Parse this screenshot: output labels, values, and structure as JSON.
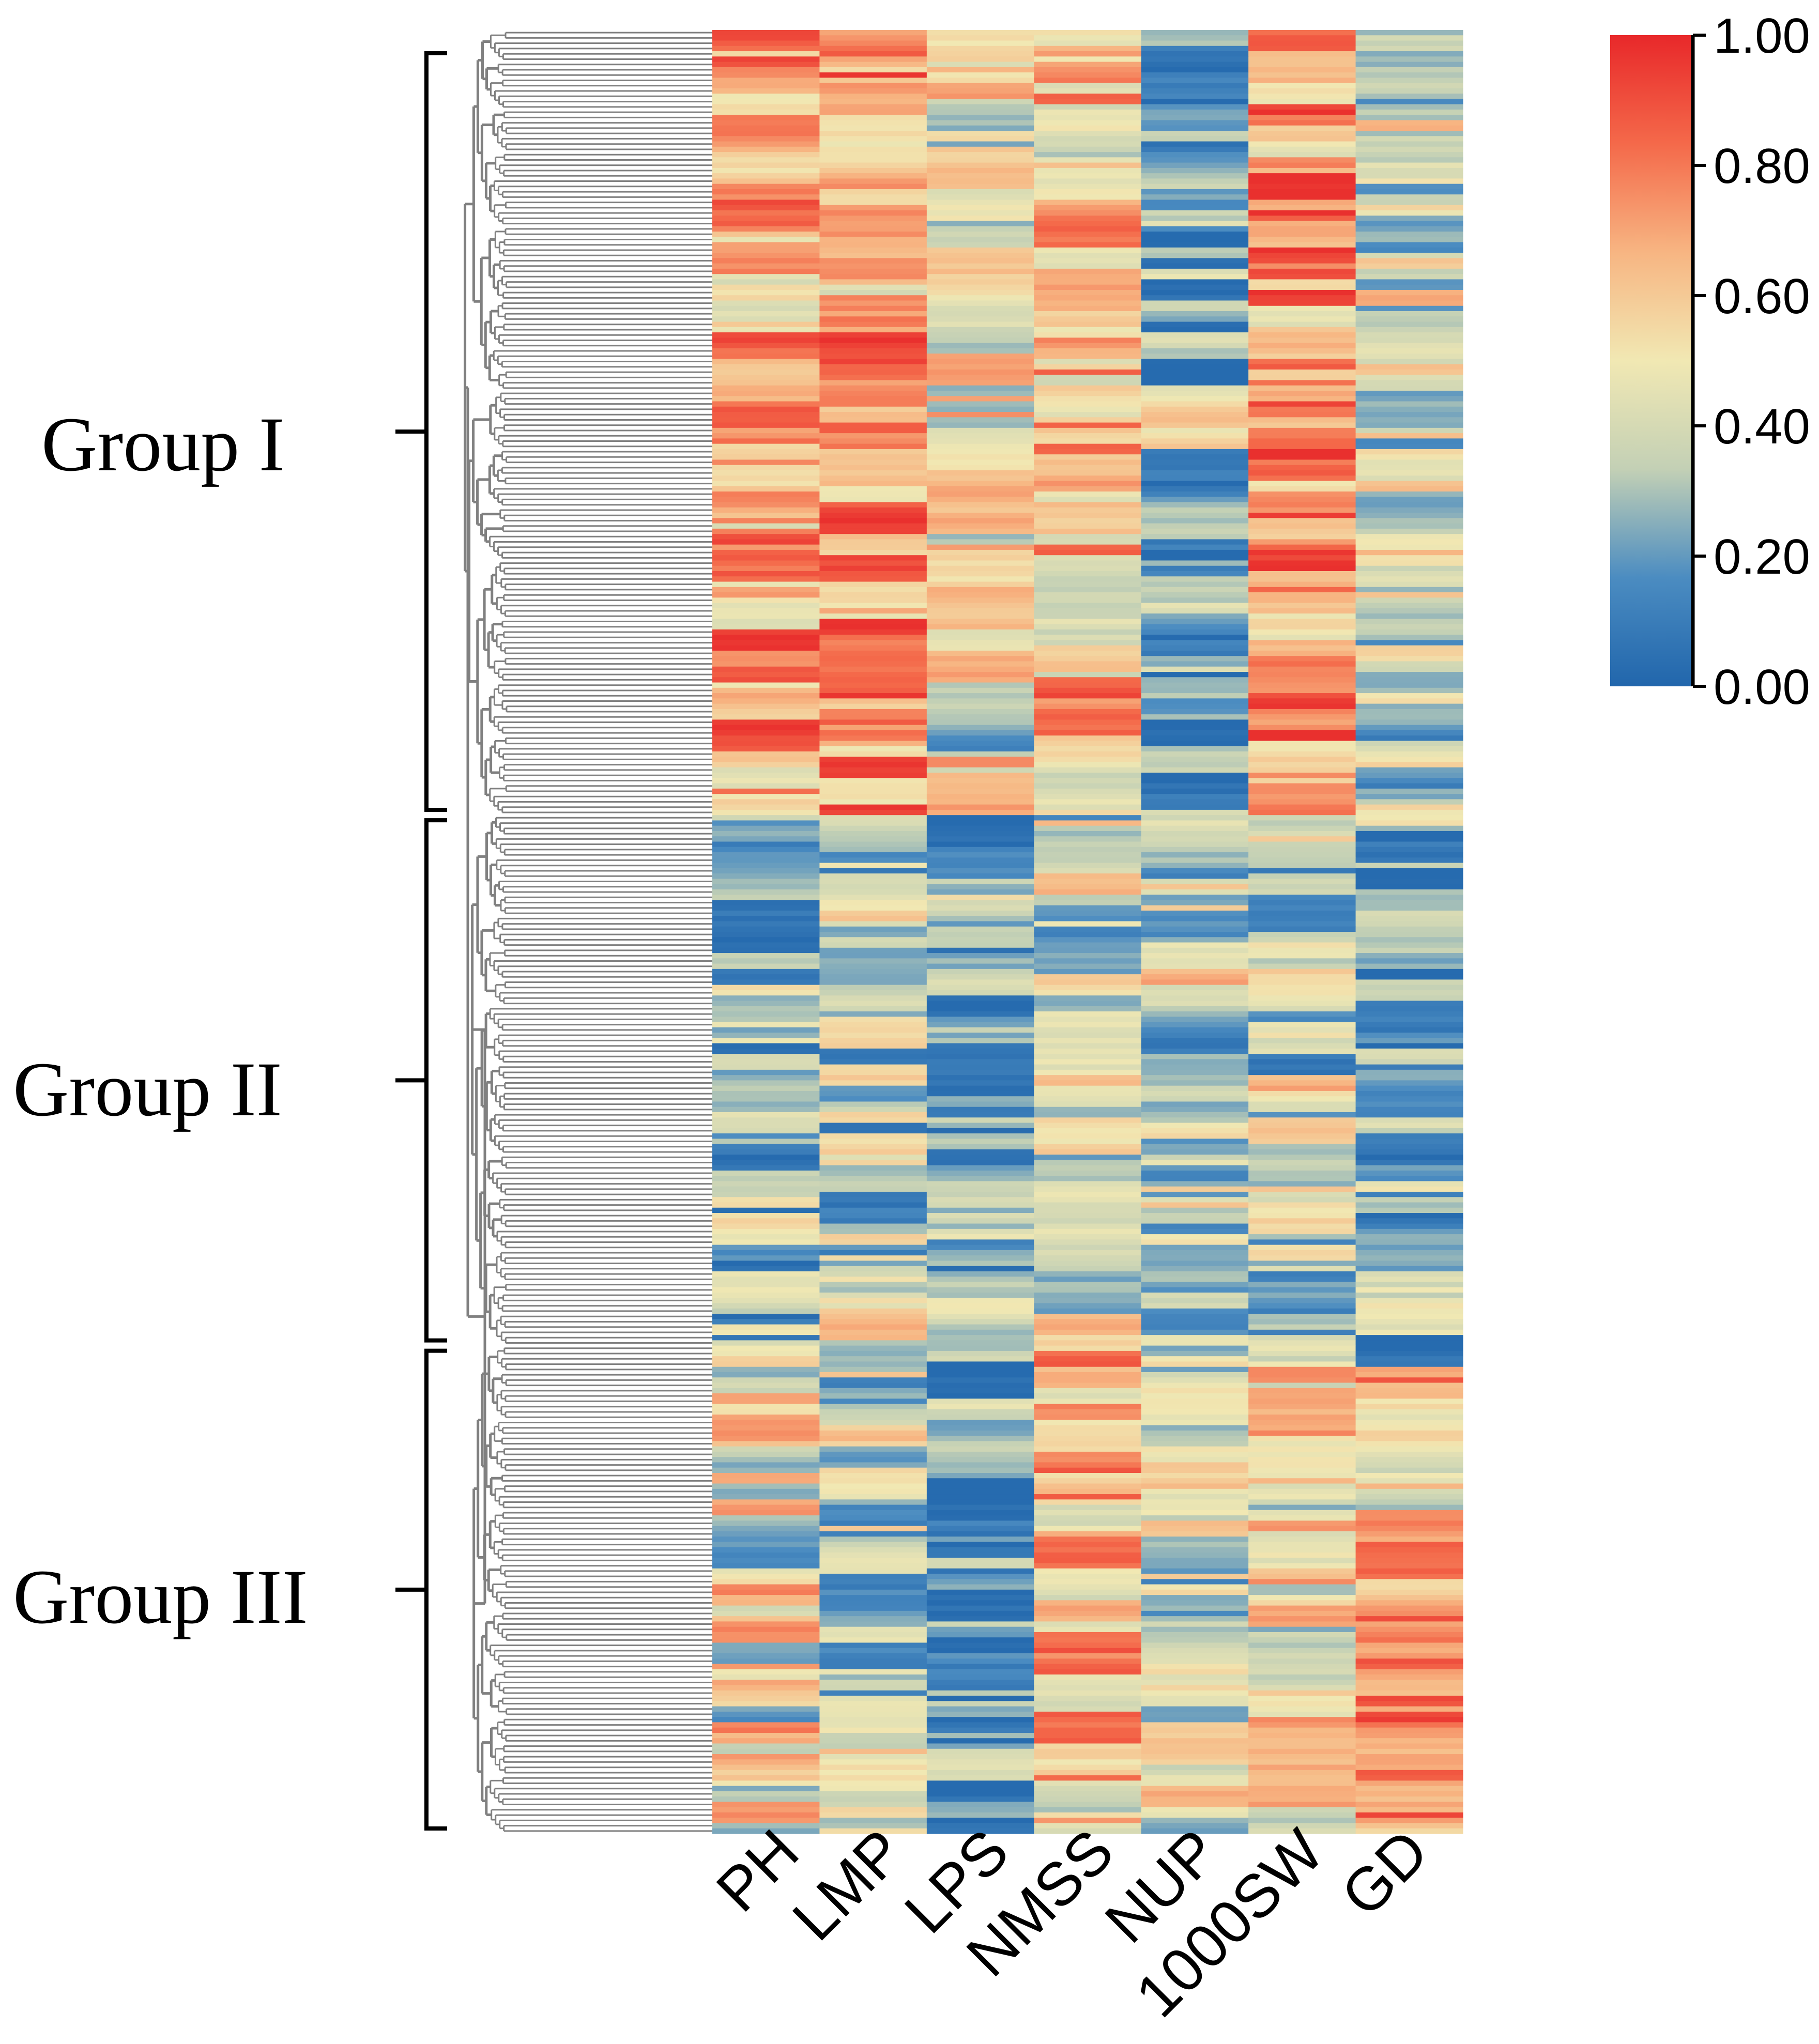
{
  "chart_data": {
    "type": "heatmap",
    "title": "",
    "columns": [
      "PH",
      "LMP",
      "LPS",
      "NMSS",
      "NUP",
      "1000SW",
      "GD"
    ],
    "row_count": 340,
    "groups": [
      {
        "name": "Group I",
        "row_range": [
          0,
          148
        ]
      },
      {
        "name": "Group II",
        "row_range": [
          148,
          248
        ]
      },
      {
        "name": "Group III",
        "row_range": [
          248,
          340
        ]
      }
    ],
    "group_mean_profile": [
      {
        "group": "Group I",
        "values": [
          0.68,
          0.7,
          0.5,
          0.6,
          0.22,
          0.75,
          0.4
        ]
      },
      {
        "group": "Group II",
        "values": [
          0.28,
          0.33,
          0.27,
          0.4,
          0.4,
          0.35,
          0.22
        ]
      },
      {
        "group": "Group III",
        "values": [
          0.5,
          0.38,
          0.18,
          0.65,
          0.38,
          0.5,
          0.65
        ]
      }
    ],
    "colorbar": {
      "ticks": [
        "1.00",
        "0.80",
        "0.60",
        "0.40",
        "0.20",
        "0.00"
      ],
      "range": [
        0,
        1
      ],
      "colors": [
        "#2166ac",
        "#4b8cc1",
        "#c3d0b5",
        "#f1e8b3",
        "#f7b582",
        "#f4694a",
        "#e8282a"
      ]
    },
    "dendrogram": {
      "color": "#808080",
      "orientation": "left"
    }
  }
}
